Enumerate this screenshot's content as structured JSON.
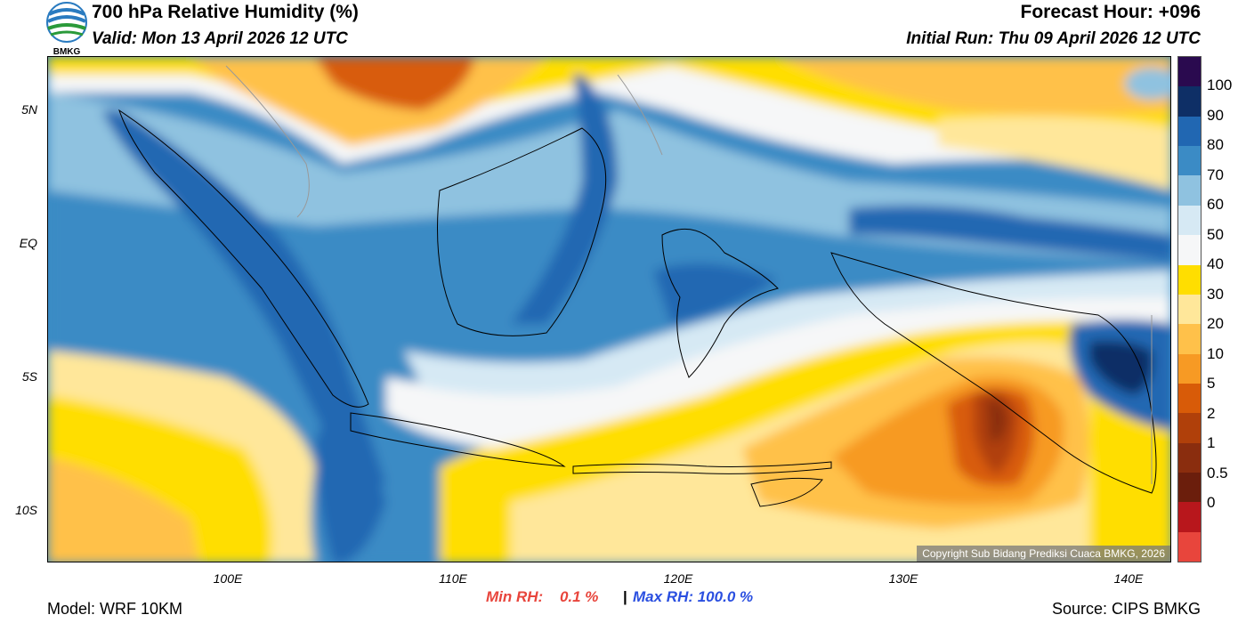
{
  "header": {
    "title": "700 hPa Relative Humidity (%)",
    "valid": "Valid: Mon 13 April 2026 12 UTC",
    "forecast_hour": "Forecast Hour: +096",
    "initial_run": "Initial Run: Thu 09 April 2026 12 UTC",
    "logo_text": "BMKG"
  },
  "axes": {
    "lat_labels": [
      "5N",
      "EQ",
      "5S",
      "10S"
    ],
    "lon_labels": [
      "100E",
      "110E",
      "120E",
      "130E",
      "140E"
    ]
  },
  "colorbar": {
    "labels": [
      "100",
      "90",
      "80",
      "70",
      "60",
      "50",
      "40",
      "30",
      "20",
      "10",
      "5",
      "2",
      "1",
      "0.5",
      "0"
    ],
    "colors": [
      "#2a0a4f",
      "#0e2f66",
      "#2167b2",
      "#3b8bc5",
      "#8fc2e0",
      "#d6e9f4",
      "#f6f7f8",
      "#ffde00",
      "#ffe79a",
      "#ffc14a",
      "#f79a24",
      "#d85b08",
      "#b0400a",
      "#8a2d0e",
      "#6b1e0c",
      "#b8171c",
      "#e8453c"
    ]
  },
  "map": {
    "copyright": "Copyright Sub Bidang Prediksi Cuaca BMKG, 2026"
  },
  "footer": {
    "model": "Model: WRF 10KM",
    "min_rh_label": "Min RH:",
    "min_rh_value": "0.1 %",
    "separator": "|",
    "max_rh": "Max RH: 100.0 %",
    "source": "Source: CIPS BMKG"
  }
}
